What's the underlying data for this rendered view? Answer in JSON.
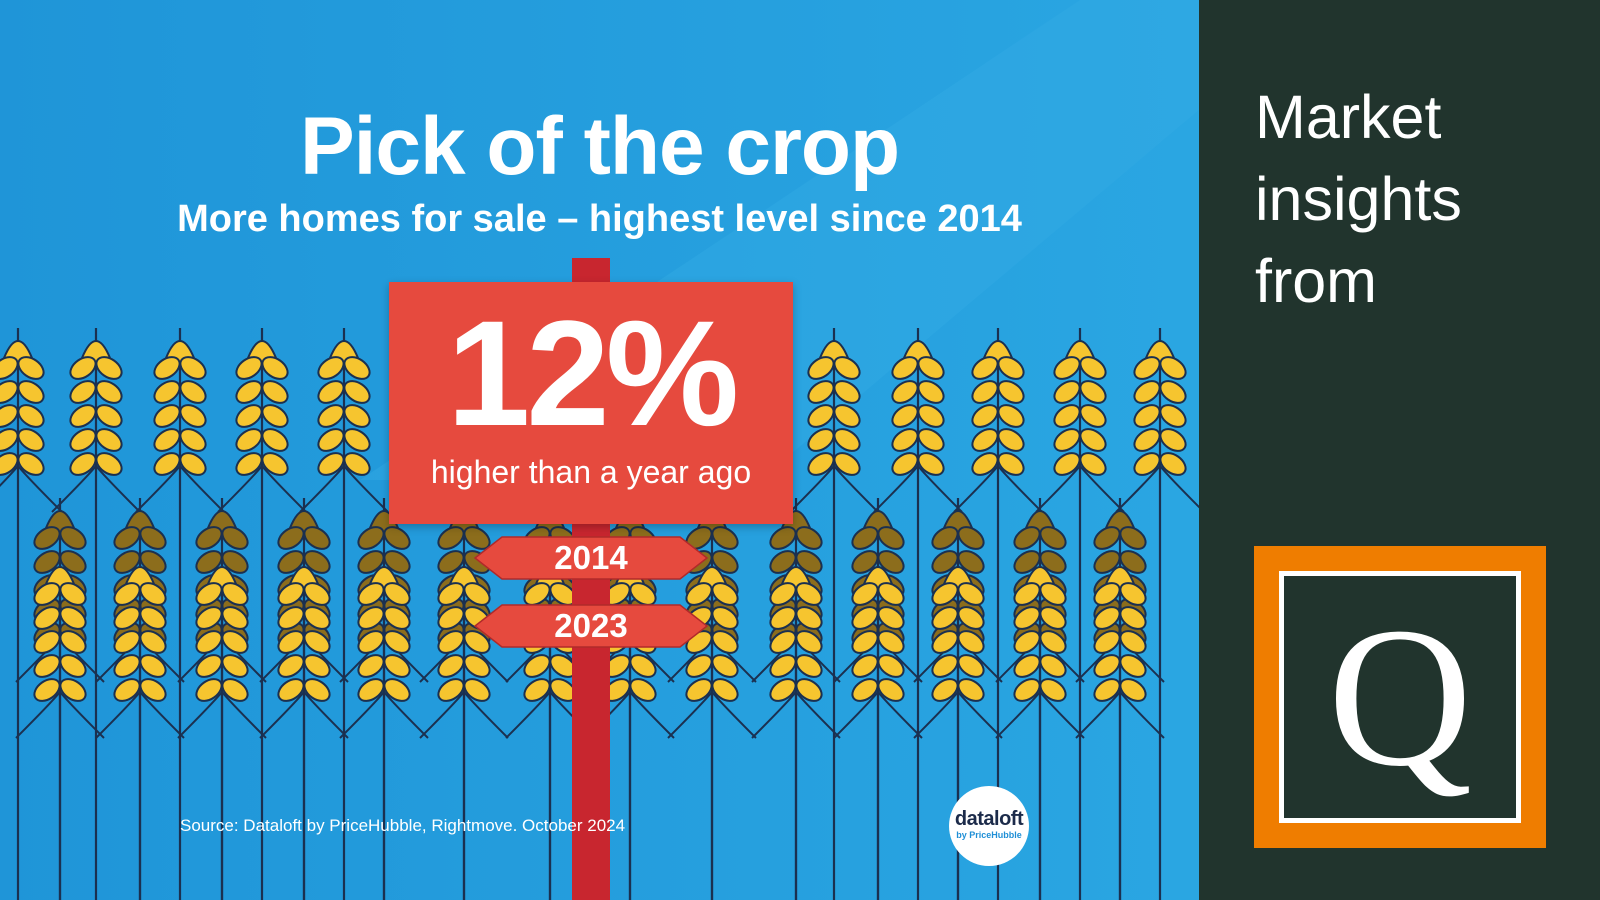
{
  "infographic": {
    "title": "Pick of the crop",
    "subtitle": "More homes for sale – highest level since 2014",
    "stat_value": "12%",
    "stat_label": "higher than a year ago",
    "signpost_years": [
      "2014",
      "2023"
    ],
    "source": "Source: Dataloft by PriceHubble, Rightmove. October 2024",
    "badge": {
      "name": "dataloft",
      "sub": "by PriceHubble"
    }
  },
  "sidebar": {
    "lines": [
      "Market",
      "insights",
      "from"
    ],
    "logo_letter": "Q"
  },
  "colors": {
    "sky": "#249bdb",
    "sign_red": "#e64a3e",
    "post_red": "#c8262f",
    "wheat_gold": "#f6c52f",
    "wheat_dark": "#8c6d1c",
    "stem_navy": "#1b3050",
    "sidebar_bg": "#21342d",
    "logo_orange": "#ef7d00"
  }
}
